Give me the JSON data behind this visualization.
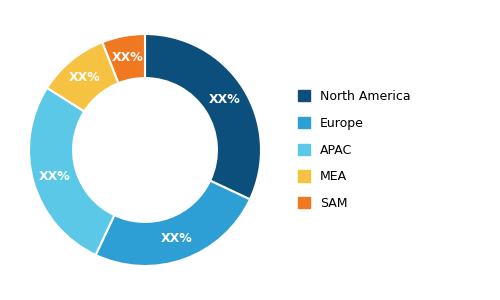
{
  "labels": [
    "North America",
    "Europe",
    "APAC",
    "MEA",
    "SAM"
  ],
  "values": [
    32,
    25,
    27,
    10,
    6
  ],
  "colors": [
    "#0d4f7c",
    "#2e9fd4",
    "#5bc8e8",
    "#f5c242",
    "#f07820"
  ],
  "text_labels": [
    "XX%",
    "XX%",
    "XX%",
    "XX%",
    "XX%"
  ],
  "legend_labels": [
    "North America",
    "Europe",
    "APAC",
    "MEA",
    "SAM"
  ],
  "donut_width": 0.38,
  "start_angle": 90,
  "background_color": "#ffffff",
  "text_color": "#ffffff",
  "text_fontsize": 9,
  "legend_fontsize": 9
}
